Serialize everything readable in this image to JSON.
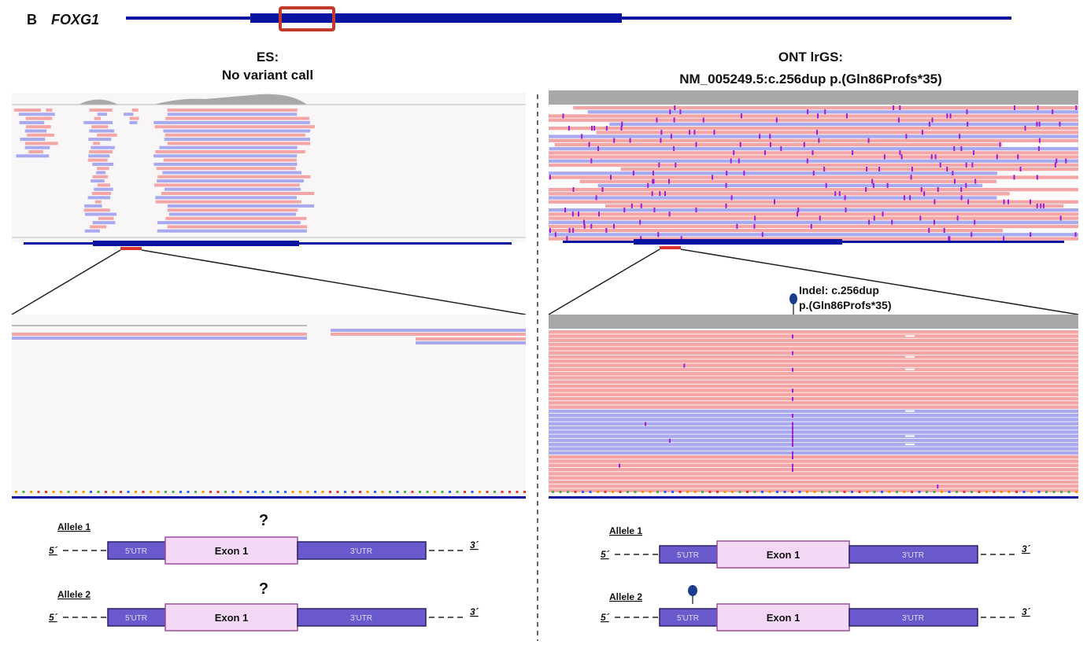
{
  "panel": {
    "letter": "B",
    "gene": "FOXG1"
  },
  "colors": {
    "gene_track": "#0a14a0",
    "highlight_box": "#c0392b",
    "read_forward": "#f4a6a6",
    "read_reverse": "#a9a9f0",
    "coverage": "#a8a8a8",
    "insertion": "#9b1bd6",
    "utr": "#6a5acd",
    "exon": "#f3d9f5",
    "pin": "#1a3d8f"
  },
  "left": {
    "title_line1": "ES:",
    "title_line2": "No variant call",
    "alleles": [
      {
        "label": "Allele 1",
        "marker": "?"
      },
      {
        "label": "Allele 2",
        "marker": "?"
      }
    ]
  },
  "right": {
    "title_line1": "ONT lrGS:",
    "title_line2": "NM_005249.5:c.256dup p.(Gln86Profs*35)",
    "variant_line1": "Indel: c.256dup",
    "variant_line2": "p.(Gln86Profs*35)",
    "alleles": [
      {
        "label": "Allele 1",
        "marker": ""
      },
      {
        "label": "Allele 2",
        "marker": "pin-icon"
      }
    ]
  },
  "transcript": {
    "five_prime": "5´",
    "three_prime": "3´",
    "utr5": "5'UTR",
    "exon": "Exon 1",
    "utr3": "3'UTR"
  }
}
